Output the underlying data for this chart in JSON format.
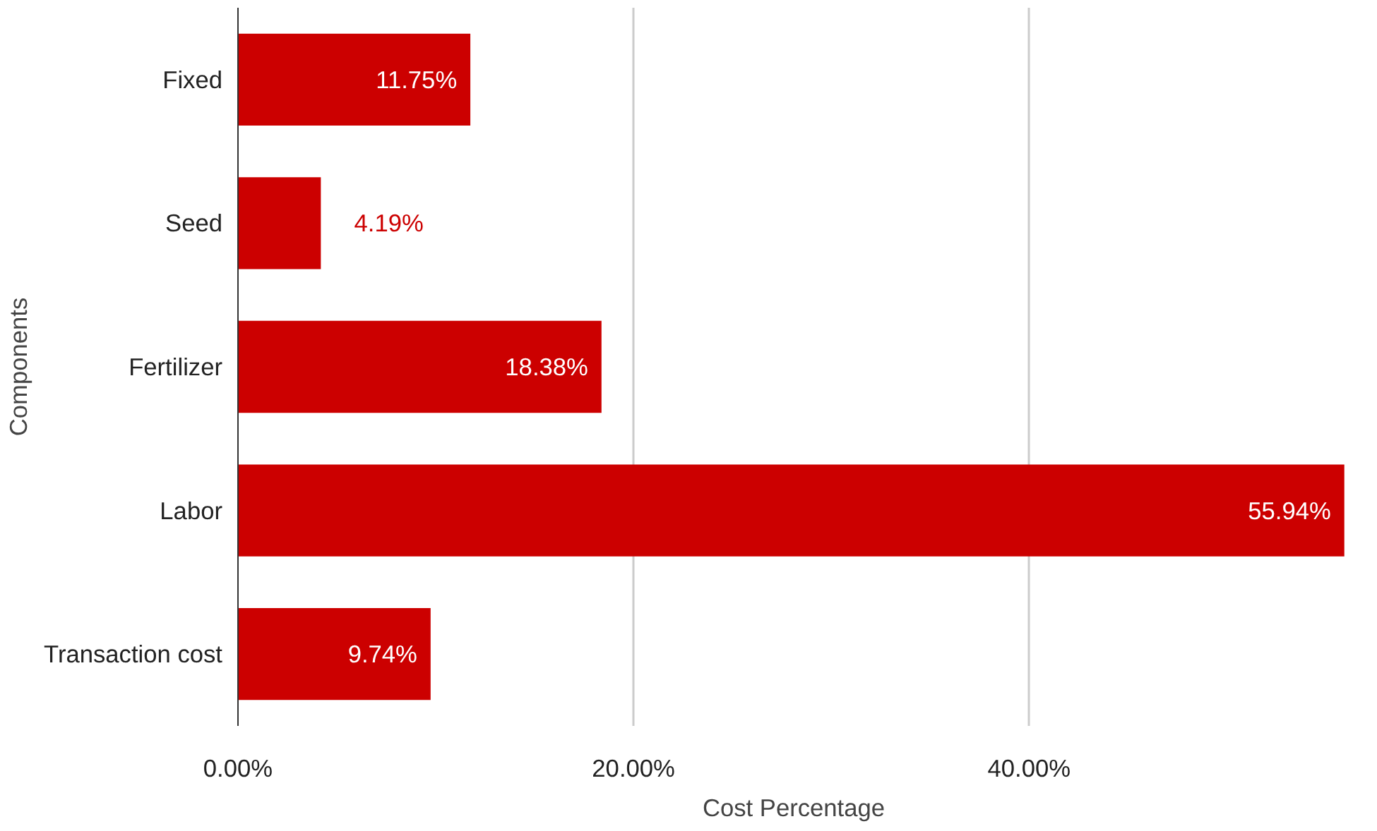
{
  "chart_data": {
    "type": "bar",
    "orientation": "horizontal",
    "xlabel": "Cost Percentage",
    "ylabel": "Components",
    "categories": [
      "Fixed",
      "Seed",
      "Fertilizer",
      "Labor",
      "Transaction cost"
    ],
    "values": [
      11.75,
      4.19,
      18.38,
      55.94,
      9.74
    ],
    "value_labels": [
      "11.75%",
      "4.19%",
      "18.38%",
      "55.94%",
      "9.74%"
    ],
    "color": "#cc0000",
    "xlim": [
      0,
      56.2
    ],
    "xticks": [
      {
        "value": 0,
        "label": "0.00%"
      },
      {
        "value": 20,
        "label": "20.00%"
      },
      {
        "value": 40,
        "label": "40.00%"
      }
    ],
    "grid": "x"
  }
}
